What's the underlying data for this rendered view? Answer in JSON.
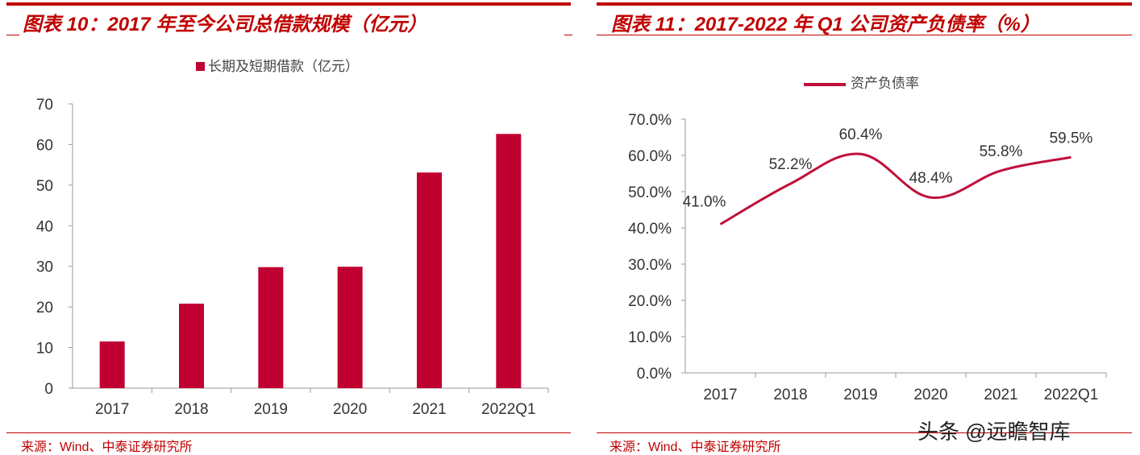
{
  "left": {
    "title": "图表 10：2017 年至今公司总借款规模（亿元）",
    "source": "来源：Wind、中泰证券研究所"
  },
  "right": {
    "title": "图表 11：2017-2022 年 Q1 公司资产负债率（%）",
    "source": "来源：Wind、中泰证券研究所"
  },
  "watermark": "头条 @远瞻智库",
  "chart_data": [
    {
      "type": "bar",
      "categories": [
        "2017",
        "2018",
        "2019",
        "2020",
        "2021",
        "2022Q1"
      ],
      "series": [
        {
          "name": "长期及短期借款（亿元）",
          "values": [
            11.5,
            20.8,
            29.8,
            29.9,
            53.1,
            62.6
          ],
          "color": "#c00030"
        }
      ],
      "ylim": [
        0,
        70
      ],
      "yticks": [
        "0",
        "10",
        "20",
        "30",
        "40",
        "50",
        "60",
        "70"
      ],
      "legend": "top-center",
      "grid": false
    },
    {
      "type": "line",
      "categories": [
        "2017",
        "2018",
        "2019",
        "2020",
        "2021",
        "2022Q1"
      ],
      "series": [
        {
          "name": "资产负债率",
          "values": [
            41.0,
            52.2,
            60.4,
            48.4,
            55.8,
            59.5
          ],
          "labels": [
            "41.0%",
            "52.2%",
            "60.4%",
            "48.4%",
            "55.8%",
            "59.5%"
          ],
          "color": "#c0103a"
        }
      ],
      "ylim": [
        0,
        70
      ],
      "yticks": [
        "0.0%",
        "10.0%",
        "20.0%",
        "30.0%",
        "40.0%",
        "50.0%",
        "60.0%",
        "70.0%"
      ],
      "legend": "top-center",
      "grid": false
    }
  ]
}
